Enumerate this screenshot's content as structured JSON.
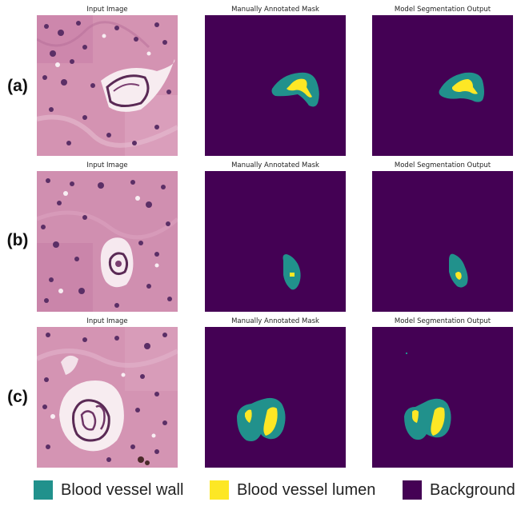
{
  "rows": [
    {
      "label": "(a)",
      "titles": [
        "Input Image",
        "Manually Annotated Mask",
        "Model Segmentation Output"
      ]
    },
    {
      "label": "(b)",
      "titles": [
        "Input Image",
        "Manually Annotated Mask",
        "Model Segmentation Output"
      ]
    },
    {
      "label": "(c)",
      "titles": [
        "Input Image",
        "Manually Annotated Mask",
        "Model Segmentation Output"
      ]
    }
  ],
  "legend": [
    {
      "label": "Blood vessel wall",
      "color": "#21918c"
    },
    {
      "label": "Blood vessel lumen",
      "color": "#fde725"
    },
    {
      "label": "Background",
      "color": "#440154"
    }
  ]
}
